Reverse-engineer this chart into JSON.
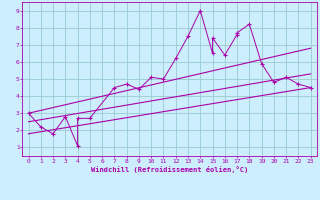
{
  "xlabel": "Windchill (Refroidissement éolien,°C)",
  "bg_color": "#cceeff",
  "line_color": "#aa00aa",
  "grid_color": "#99cccc",
  "xlim": [
    -0.5,
    23.5
  ],
  "ylim": [
    0.5,
    9.5
  ],
  "xticks": [
    0,
    1,
    2,
    3,
    4,
    5,
    6,
    7,
    8,
    9,
    10,
    11,
    12,
    13,
    14,
    15,
    16,
    17,
    18,
    19,
    20,
    21,
    22,
    23
  ],
  "yticks": [
    1,
    2,
    3,
    4,
    5,
    6,
    7,
    8,
    9
  ],
  "scatter_x": [
    0,
    1,
    2,
    3,
    4,
    4,
    5,
    7,
    8,
    9,
    10,
    11,
    12,
    13,
    14,
    15,
    15,
    16,
    17,
    17,
    18,
    19,
    20,
    21,
    22,
    23
  ],
  "scatter_y": [
    3,
    2.2,
    1.8,
    2.8,
    1.1,
    2.7,
    2.7,
    4.5,
    4.7,
    4.4,
    5.1,
    5.0,
    6.2,
    7.5,
    9.0,
    6.5,
    7.4,
    6.4,
    7.6,
    7.7,
    8.2,
    5.9,
    4.8,
    5.1,
    4.7,
    4.5
  ],
  "line1_x": [
    0,
    23
  ],
  "line1_y": [
    1.8,
    4.5
  ],
  "line2_x": [
    0,
    23
  ],
  "line2_y": [
    2.5,
    5.3
  ],
  "line3_x": [
    0,
    23
  ],
  "line3_y": [
    3.0,
    6.8
  ]
}
